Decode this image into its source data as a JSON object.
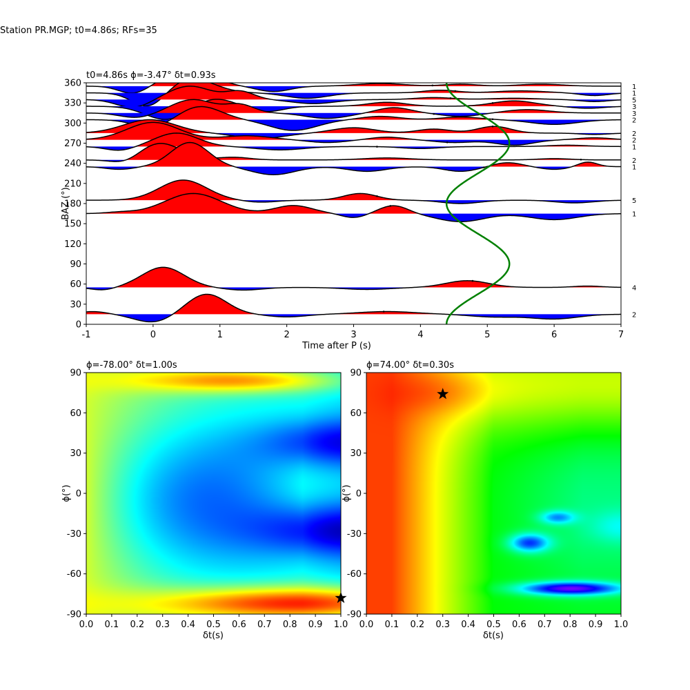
{
  "figure_title": "Station PR.MGP; t0=4.86s; RFs=35",
  "colors": {
    "positive_fill": "#ff0000",
    "negative_fill": "#0000ff",
    "trace_line": "#000000",
    "delay_curve": "#008000",
    "best_marker": "#000000"
  },
  "chart_data": [
    {
      "type": "line",
      "subtitle": "t0=4.86s ϕ=-3.47° δt=0.93s",
      "xlabel": "Time after P (s)",
      "ylabel": "BAZ (°)",
      "xlim": [
        -1,
        7
      ],
      "ylim": [
        0,
        360
      ],
      "xticks": [
        "-1",
        "0",
        "1",
        "2",
        "3",
        "4",
        "5",
        "6",
        "7"
      ],
      "yticks": [
        "0",
        "30",
        "60",
        "90",
        "120",
        "150",
        "180",
        "210",
        "240",
        "270",
        "300",
        "330",
        "360"
      ],
      "traces": [
        {
          "baz": 355,
          "count": "1",
          "waves": [
            [
              -0.3,
              0.3,
              -11
            ],
            [
              0.55,
              0.45,
              30
            ],
            [
              1.8,
              0.35,
              -8
            ],
            [
              3.4,
              0.5,
              4
            ],
            [
              4.6,
              0.35,
              3
            ],
            [
              5.8,
              0.45,
              3
            ]
          ],
          "mark_t": 4.18
        },
        {
          "baz": 345,
          "count": "1",
          "waves": [
            [
              -0.05,
              0.35,
              -24
            ],
            [
              0.55,
              0.5,
              22
            ],
            [
              2.3,
              0.45,
              -8
            ],
            [
              4.3,
              0.35,
              4
            ],
            [
              5.5,
              0.5,
              3
            ],
            [
              6.6,
              0.3,
              -4
            ]
          ],
          "mark_t": 4.52
        },
        {
          "baz": 335,
          "count": "5",
          "waves": [
            [
              -0.3,
              0.35,
              -12
            ],
            [
              0.55,
              0.45,
              20
            ],
            [
              1.3,
              0.3,
              12
            ],
            [
              2.4,
              0.45,
              -6
            ],
            [
              4.2,
              0.4,
              3
            ],
            [
              5.4,
              0.5,
              2
            ],
            [
              6.6,
              0.3,
              -3
            ]
          ],
          "mark_t": 4.45
        },
        {
          "baz": 325,
          "count": "3",
          "waves": [
            [
              0.2,
              0.45,
              -20
            ],
            [
              0.9,
              0.4,
              12
            ],
            [
              1.7,
              0.35,
              -8
            ],
            [
              3.5,
              0.4,
              6
            ],
            [
              5.4,
              0.45,
              8
            ],
            [
              6.5,
              0.35,
              -3
            ]
          ],
          "mark_t": 5.08
        },
        {
          "baz": 315,
          "count": "3",
          "waves": [
            [
              -0.25,
              0.35,
              -7
            ],
            [
              0.6,
              0.45,
              20
            ],
            [
              1.3,
              0.3,
              12
            ],
            [
              2.6,
              0.45,
              -8
            ],
            [
              3.6,
              0.35,
              8
            ],
            [
              4.6,
              0.4,
              -5
            ],
            [
              5.6,
              0.45,
              5
            ]
          ],
          "mark_t": 4.2
        },
        {
          "baz": 305,
          "count": "2",
          "waves": [
            [
              0.0,
              0.4,
              -12
            ],
            [
              0.7,
              0.45,
              20
            ],
            [
              2.1,
              0.5,
              -16
            ],
            [
              3.4,
              0.4,
              5
            ],
            [
              4.6,
              0.4,
              4
            ],
            [
              6.0,
              0.5,
              -7
            ]
          ],
          "mark_t": 5.08
        },
        {
          "baz": 285,
          "count": "2",
          "waves": [
            [
              -0.05,
              0.55,
              20
            ],
            [
              1.6,
              0.5,
              -8
            ],
            [
              3.0,
              0.45,
              8
            ],
            [
              4.2,
              0.35,
              6
            ],
            [
              5.1,
              0.35,
              10
            ],
            [
              6.6,
              0.3,
              -2
            ]
          ],
          "mark_t": 5.08
        },
        {
          "baz": 275,
          "count": "2",
          "waves": [
            [
              0.0,
              0.55,
              26
            ],
            [
              1.4,
              0.5,
              6
            ],
            [
              2.6,
              0.4,
              -4
            ],
            [
              3.5,
              0.35,
              4
            ],
            [
              4.5,
              0.4,
              -4
            ],
            [
              5.4,
              0.4,
              -8
            ],
            [
              6.6,
              0.35,
              3
            ]
          ],
          "mark_t": 4.4
        },
        {
          "baz": 265,
          "count": "1",
          "waves": [
            [
              -0.5,
              0.3,
              -6
            ],
            [
              0.35,
              0.45,
              20
            ],
            [
              1.9,
              0.5,
              -5
            ],
            [
              4.0,
              0.4,
              -3
            ],
            [
              6.2,
              0.4,
              2
            ]
          ],
          "mark_t": 3.35
        },
        {
          "baz": 245,
          "count": "2",
          "waves": [
            [
              -0.4,
              0.3,
              -7
            ],
            [
              0.1,
              0.45,
              25
            ],
            [
              1.2,
              0.35,
              4
            ],
            [
              3.5,
              0.5,
              3
            ],
            [
              6.0,
              0.35,
              2
            ]
          ],
          "mark_t": 6.4
        },
        {
          "baz": 235,
          "count": "1",
          "waves": [
            [
              -0.5,
              0.3,
              -4
            ],
            [
              0.55,
              0.4,
              36
            ],
            [
              1.8,
              0.45,
              -12
            ],
            [
              3.2,
              0.4,
              -7
            ],
            [
              4.6,
              0.35,
              -7
            ],
            [
              5.3,
              0.3,
              6
            ],
            [
              6.0,
              0.3,
              -4
            ],
            [
              6.5,
              0.2,
              7
            ]
          ],
          "mark_t": 4.95
        },
        {
          "baz": 185,
          "count": "5",
          "waves": [
            [
              0.45,
              0.5,
              30
            ],
            [
              1.6,
              0.35,
              -3
            ],
            [
              3.1,
              0.35,
              10
            ],
            [
              4.6,
              0.4,
              -5
            ],
            [
              6.3,
              0.4,
              -4
            ]
          ],
          "mark_t": 3.35
        },
        {
          "baz": 165,
          "count": "1",
          "waves": [
            [
              -0.5,
              0.3,
              2
            ],
            [
              0.6,
              0.6,
              30
            ],
            [
              2.1,
              0.4,
              12
            ],
            [
              3.0,
              0.25,
              -6
            ],
            [
              3.6,
              0.3,
              12
            ],
            [
              4.6,
              0.5,
              -12
            ],
            [
              6.0,
              0.5,
              -9
            ]
          ],
          "mark_t": 3.55
        },
        {
          "baz": 55,
          "count": "4",
          "waves": [
            [
              -0.75,
              0.25,
              -4
            ],
            [
              0.15,
              0.45,
              30
            ],
            [
              1.35,
              0.4,
              -4
            ],
            [
              3.2,
              0.5,
              -3
            ],
            [
              4.7,
              0.45,
              10
            ],
            [
              6.5,
              0.3,
              2
            ]
          ],
          "mark_t": 4.78
        },
        {
          "baz": 15,
          "count": "2",
          "waves": [
            [
              -0.9,
              0.3,
              4
            ],
            [
              0.0,
              0.4,
              -12
            ],
            [
              0.8,
              0.42,
              30
            ],
            [
              2.0,
              0.4,
              -4
            ],
            [
              3.5,
              0.6,
              4
            ],
            [
              5.1,
              0.5,
              -4
            ],
            [
              6.0,
              0.5,
              -7
            ]
          ],
          "mark_t": 3.45
        }
      ],
      "delay_curve": {
        "center_t": 4.86,
        "amplitude_t": 0.47,
        "min_t": 4.39,
        "max_t": 5.33,
        "start_t": 4.39,
        "end_t": 4.39,
        "period_deg": 180
      }
    },
    {
      "type": "heatmap",
      "subtitle": "ϕ=-78.00° δt=1.00s",
      "xlabel": "δt(s)",
      "ylabel": "ϕ(°)",
      "xlim": [
        0,
        1
      ],
      "ylim": [
        -90,
        90
      ],
      "xticks": [
        "0.0",
        "0.1",
        "0.2",
        "0.3",
        "0.4",
        "0.5",
        "0.6",
        "0.7",
        "0.8",
        "0.9",
        "1.0"
      ],
      "yticks": [
        "-90",
        "-60",
        "-30",
        "0",
        "30",
        "60",
        "90"
      ],
      "colormap": "jet",
      "best": {
        "dt": 1.0,
        "phi": -78
      }
    },
    {
      "type": "heatmap",
      "subtitle": "ϕ=74.00° δt=0.30s",
      "xlabel": "δt(s)",
      "ylabel": "ϕ(°)",
      "xlim": [
        0,
        1
      ],
      "ylim": [
        -90,
        90
      ],
      "xticks": [
        "0.0",
        "0.1",
        "0.2",
        "0.3",
        "0.4",
        "0.5",
        "0.6",
        "0.7",
        "0.8",
        "0.9",
        "1.0"
      ],
      "yticks": [
        "-90",
        "-60",
        "-30",
        "0",
        "30",
        "60",
        "90"
      ],
      "colormap": "hsv",
      "best": {
        "dt": 0.3,
        "phi": 74
      }
    }
  ]
}
